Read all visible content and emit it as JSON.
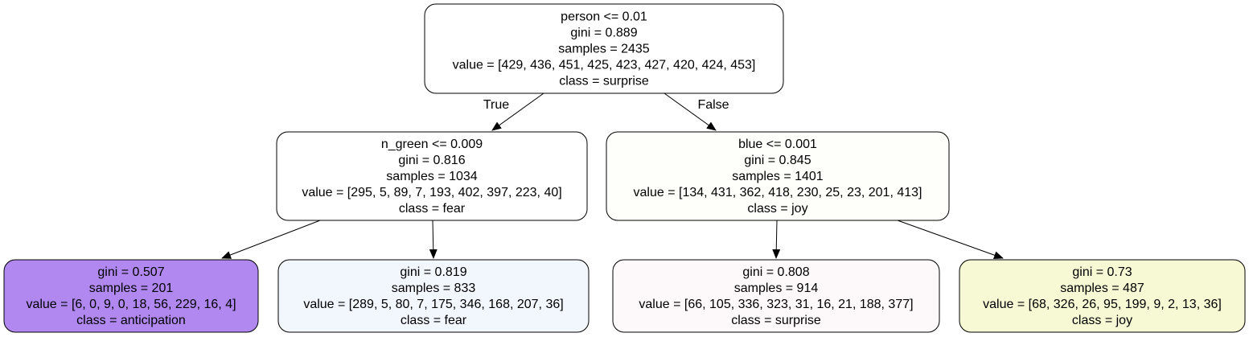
{
  "tree": {
    "nodes": [
      {
        "id": "root",
        "lines": [
          "person <= 0.01",
          "gini = 0.889",
          "samples = 2435",
          "value = [429, 436, 451, 425, 423, 427, 420, 424, 453]",
          "class = surprise"
        ],
        "fill": "#ffffff"
      },
      {
        "id": "left",
        "lines": [
          "n_green <= 0.009",
          "gini = 0.816",
          "samples = 1034",
          "value = [295, 5, 89, 7, 193, 402, 397, 223, 40]",
          "class = fear"
        ],
        "fill": "#ffffff"
      },
      {
        "id": "right",
        "lines": [
          "blue <= 0.001",
          "gini = 0.845",
          "samples = 1401",
          "value = [134, 431, 362, 418, 230, 25, 23, 201, 413]",
          "class = joy"
        ],
        "fill": "#fefffb"
      },
      {
        "id": "ll",
        "lines": [
          "gini = 0.507",
          "samples = 201",
          "value = [6, 0, 9, 0, 18, 56, 229, 16, 4]",
          "class = anticipation"
        ],
        "fill": "#b088f0"
      },
      {
        "id": "lr",
        "lines": [
          "gini = 0.819",
          "samples = 833",
          "value = [289, 5, 80, 7, 175, 346, 168, 207, 36]",
          "class = fear"
        ],
        "fill": "#f2f6fd"
      },
      {
        "id": "rl",
        "lines": [
          "gini = 0.808",
          "samples = 914",
          "value = [66, 105, 336, 323, 31, 16, 21, 188, 377]",
          "class = surprise"
        ],
        "fill": "#fdf8f9"
      },
      {
        "id": "rr",
        "lines": [
          "gini = 0.73",
          "samples = 487",
          "value = [68, 326, 26, 95, 199, 9, 2, 13, 36]",
          "class = joy"
        ],
        "fill": "#f6f9d3"
      }
    ],
    "edges": [
      {
        "from": "root",
        "to": "left",
        "label": "True"
      },
      {
        "from": "root",
        "to": "right",
        "label": "False"
      },
      {
        "from": "left",
        "to": "ll",
        "label": ""
      },
      {
        "from": "left",
        "to": "lr",
        "label": ""
      },
      {
        "from": "right",
        "to": "rl",
        "label": ""
      },
      {
        "from": "right",
        "to": "rr",
        "label": ""
      }
    ]
  }
}
